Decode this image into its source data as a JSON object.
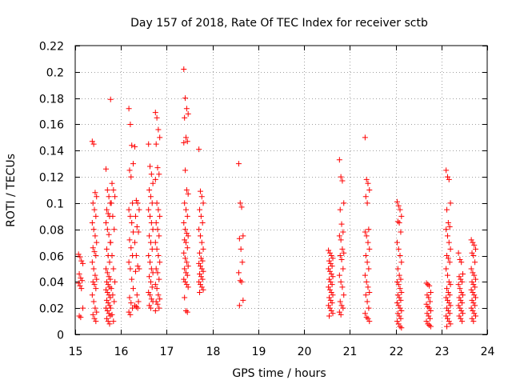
{
  "chart_data": {
    "type": "scatter",
    "title": "Day 157 of 2018, Rate Of TEC Index for receiver sctb",
    "xlabel": "GPS time / hours",
    "ylabel": "ROTI / TECUs",
    "xlim": [
      15,
      24
    ],
    "ylim": [
      0,
      0.22
    ],
    "xticks": [
      15,
      16,
      17,
      18,
      19,
      20,
      21,
      22,
      23,
      24
    ],
    "yticks": [
      0,
      0.02,
      0.04,
      0.06,
      0.08,
      0.1,
      0.12,
      0.14,
      0.16,
      0.18,
      0.2,
      0.22
    ],
    "xtick_labels": [
      "15",
      "16",
      "17",
      "18",
      "19",
      "20",
      "21",
      "22",
      "23",
      "24"
    ],
    "ytick_labels": [
      "0",
      "0.02",
      "0.04",
      "0.06",
      "0.08",
      "0.1",
      "0.12",
      "0.14",
      "0.16",
      "0.18",
      "0.2",
      "0.22"
    ],
    "grid": true,
    "marker": "plus",
    "series": [
      {
        "name": "ROTI",
        "color": "#ff0000",
        "clusters": [
          {
            "x": 15.12,
            "values": [
              0.061,
              0.059,
              0.056,
              0.054,
              0.046,
              0.043,
              0.041,
              0.039,
              0.037,
              0.035,
              0.02,
              0.014,
              0.013
            ]
          },
          {
            "x": 15.42,
            "values": [
              0.147,
              0.145,
              0.108,
              0.105,
              0.1,
              0.095,
              0.09,
              0.085,
              0.08,
              0.075,
              0.07,
              0.066,
              0.063,
              0.06,
              0.055,
              0.05,
              0.045,
              0.042,
              0.04,
              0.038,
              0.035,
              0.03,
              0.025,
              0.02,
              0.017,
              0.015,
              0.012,
              0.01
            ]
          },
          {
            "x": 15.72,
            "values": [
              0.126,
              0.11,
              0.105,
              0.1,
              0.095,
              0.092,
              0.09,
              0.085,
              0.08,
              0.076,
              0.07,
              0.065,
              0.06,
              0.055,
              0.05,
              0.047,
              0.044,
              0.042,
              0.04,
              0.038,
              0.036,
              0.034,
              0.032,
              0.03,
              0.028,
              0.026,
              0.024,
              0.022,
              0.02,
              0.018,
              0.016,
              0.014,
              0.012,
              0.01,
              0.008
            ]
          },
          {
            "x": 15.82,
            "values": [
              0.179,
              0.115,
              0.11,
              0.105,
              0.1,
              0.09,
              0.08,
              0.07,
              0.06,
              0.05,
              0.04,
              0.035,
              0.03,
              0.025,
              0.02,
              0.015,
              0.01
            ]
          },
          {
            "x": 16.22,
            "values": [
              0.172,
              0.16,
              0.144,
              0.13,
              0.125,
              0.12,
              0.1,
              0.095,
              0.09,
              0.085,
              0.078,
              0.072,
              0.066,
              0.06,
              0.055,
              0.05,
              0.042,
              0.035,
              0.028,
              0.024,
              0.02,
              0.017,
              0.015
            ]
          },
          {
            "x": 16.35,
            "values": [
              0.143,
              0.102,
              0.1,
              0.095,
              0.09,
              0.082,
              0.078,
              0.07,
              0.06,
              0.052,
              0.05,
              0.048,
              0.03,
              0.025,
              0.022,
              0.021,
              0.02
            ]
          },
          {
            "x": 16.65,
            "values": [
              0.145,
              0.128,
              0.122,
              0.115,
              0.11,
              0.105,
              0.1,
              0.095,
              0.09,
              0.085,
              0.08,
              0.075,
              0.07,
              0.065,
              0.06,
              0.055,
              0.05,
              0.047,
              0.044,
              0.04,
              0.036,
              0.032,
              0.03,
              0.027,
              0.025,
              0.022,
              0.02
            ]
          },
          {
            "x": 16.8,
            "values": [
              0.169,
              0.165,
              0.156,
              0.15,
              0.145,
              0.127,
              0.122,
              0.118,
              0.1,
              0.095,
              0.09,
              0.085,
              0.08,
              0.075,
              0.07,
              0.065,
              0.06,
              0.055,
              0.05,
              0.047,
              0.042,
              0.038,
              0.035,
              0.03,
              0.027,
              0.025,
              0.023,
              0.02,
              0.018
            ]
          },
          {
            "x": 17.42,
            "values": [
              0.202,
              0.18,
              0.172,
              0.168,
              0.165,
              0.15,
              0.147,
              0.146,
              0.125,
              0.11,
              0.107,
              0.1,
              0.095,
              0.09,
              0.085,
              0.08,
              0.077,
              0.075,
              0.072,
              0.07,
              0.066,
              0.062,
              0.058,
              0.055,
              0.052,
              0.05,
              0.047,
              0.045,
              0.042,
              0.04,
              0.038,
              0.036,
              0.028,
              0.018,
              0.017
            ]
          },
          {
            "x": 17.75,
            "values": [
              0.141,
              0.109,
              0.105,
              0.1,
              0.095,
              0.09,
              0.085,
              0.08,
              0.075,
              0.07,
              0.065,
              0.062,
              0.058,
              0.056,
              0.054,
              0.052,
              0.05,
              0.048,
              0.046,
              0.044,
              0.042,
              0.04,
              0.038,
              0.036,
              0.034,
              0.032
            ]
          },
          {
            "x": 18.62,
            "values": [
              0.13,
              0.1,
              0.097,
              0.075,
              0.073,
              0.065,
              0.055,
              0.047,
              0.041,
              0.04,
              0.026,
              0.022
            ]
          },
          {
            "x": 20.58,
            "values": [
              0.064,
              0.062,
              0.06,
              0.058,
              0.056,
              0.054,
              0.052,
              0.05,
              0.048,
              0.046,
              0.044,
              0.042,
              0.04,
              0.038,
              0.036,
              0.034,
              0.032,
              0.03,
              0.028,
              0.026,
              0.024,
              0.022,
              0.02,
              0.018,
              0.016,
              0.014
            ]
          },
          {
            "x": 20.82,
            "values": [
              0.133,
              0.12,
              0.117,
              0.1,
              0.095,
              0.084,
              0.078,
              0.075,
              0.072,
              0.065,
              0.062,
              0.06,
              0.057,
              0.05,
              0.045,
              0.04,
              0.036,
              0.03,
              0.025,
              0.022,
              0.02,
              0.017,
              0.015
            ]
          },
          {
            "x": 21.38,
            "values": [
              0.15,
              0.118,
              0.115,
              0.11,
              0.105,
              0.1,
              0.08,
              0.078,
              0.075,
              0.07,
              0.065,
              0.06,
              0.055,
              0.05,
              0.045,
              0.04,
              0.036,
              0.032,
              0.03,
              0.025,
              0.02,
              0.016,
              0.013,
              0.012,
              0.01
            ]
          },
          {
            "x": 22.08,
            "values": [
              0.101,
              0.098,
              0.095,
              0.09,
              0.086,
              0.085,
              0.078,
              0.07,
              0.065,
              0.06,
              0.055,
              0.05,
              0.045,
              0.042,
              0.04,
              0.038,
              0.035,
              0.032,
              0.03,
              0.028,
              0.026,
              0.024,
              0.022,
              0.02,
              0.018,
              0.016,
              0.014,
              0.012,
              0.01,
              0.008,
              0.006,
              0.005
            ]
          },
          {
            "x": 22.72,
            "values": [
              0.039,
              0.038,
              0.037,
              0.032,
              0.03,
              0.028,
              0.025,
              0.023,
              0.021,
              0.02,
              0.018,
              0.016,
              0.014,
              0.012,
              0.01,
              0.008,
              0.007,
              0.006
            ]
          },
          {
            "x": 23.15,
            "values": [
              0.125,
              0.12,
              0.118,
              0.1,
              0.095,
              0.085,
              0.082,
              0.08,
              0.075,
              0.07,
              0.065,
              0.06,
              0.058,
              0.055,
              0.05,
              0.045,
              0.04,
              0.038,
              0.035,
              0.032,
              0.03,
              0.028,
              0.026,
              0.024,
              0.022,
              0.02,
              0.018,
              0.016,
              0.014,
              0.012,
              0.01,
              0.008,
              0.006
            ]
          },
          {
            "x": 23.42,
            "values": [
              0.062,
              0.057,
              0.055,
              0.046,
              0.044,
              0.042,
              0.04,
              0.038,
              0.035,
              0.032,
              0.03,
              0.028,
              0.026,
              0.024,
              0.022,
              0.02,
              0.018,
              0.016,
              0.014,
              0.012,
              0.01
            ]
          },
          {
            "x": 23.7,
            "values": [
              0.072,
              0.07,
              0.068,
              0.065,
              0.062,
              0.06,
              0.055,
              0.05,
              0.047,
              0.045,
              0.042,
              0.04,
              0.038,
              0.036,
              0.034,
              0.032,
              0.03,
              0.028,
              0.026,
              0.024,
              0.022,
              0.02,
              0.018,
              0.016,
              0.014,
              0.012,
              0.01
            ]
          }
        ]
      }
    ]
  }
}
